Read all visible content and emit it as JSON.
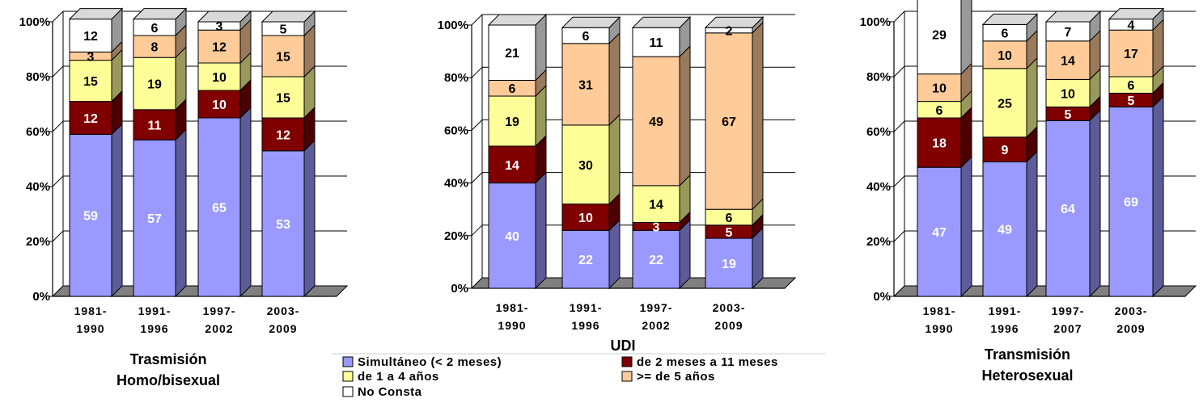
{
  "colors": {
    "simultaneo": "#9999ff",
    "dos_meses": "#800000",
    "uno_cuatro": "#ffff99",
    "cinco_mas": "#ffcc99",
    "no_consta": "#ffffff"
  },
  "legend": [
    {
      "key": "simultaneo",
      "label": "Simultáneo (< 2 meses)"
    },
    {
      "key": "dos_meses",
      "label": "de 2 meses a 11 meses"
    },
    {
      "key": "uno_cuatro",
      "label": "de 1 a 4 años"
    },
    {
      "key": "cinco_mas",
      "label": ">= de 5 años"
    },
    {
      "key": "no_consta",
      "label": "No Consta"
    }
  ],
  "chart_data": [
    {
      "type": "bar",
      "stacked": true,
      "percent": true,
      "title_lines": [
        "Trasmisión",
        "Homo/bisexual"
      ],
      "categories": [
        [
          "1981-",
          "1990"
        ],
        [
          "1991-",
          "1996"
        ],
        [
          "1997-",
          "2002"
        ],
        [
          "2003-",
          "2009"
        ]
      ],
      "y_ticks": [
        "0%",
        "20%",
        "40%",
        "60%",
        "80%",
        "100%"
      ],
      "series": [
        {
          "key": "simultaneo",
          "name": "Simultáneo (< 2 meses)",
          "values": [
            59,
            57,
            65,
            53
          ]
        },
        {
          "key": "dos_meses",
          "name": "de 2 meses a 11 meses",
          "values": [
            12,
            11,
            10,
            12
          ]
        },
        {
          "key": "uno_cuatro",
          "name": "de 1 a 4 años",
          "values": [
            15,
            19,
            10,
            15
          ]
        },
        {
          "key": "cinco_mas",
          "name": ">= de 5 años",
          "values": [
            3,
            8,
            12,
            15
          ]
        },
        {
          "key": "no_consta",
          "name": "No Consta",
          "values": [
            12,
            6,
            3,
            5
          ]
        }
      ]
    },
    {
      "type": "bar",
      "stacked": true,
      "percent": true,
      "title_lines": [
        "UDI"
      ],
      "categories": [
        [
          "1981-",
          "1990"
        ],
        [
          "1991-",
          "1996"
        ],
        [
          "1997-",
          "2002"
        ],
        [
          "2003-",
          "2009"
        ]
      ],
      "y_ticks": [
        "0%",
        "20%",
        "40%",
        "60%",
        "80%",
        "100%"
      ],
      "series": [
        {
          "key": "simultaneo",
          "name": "Simultáneo (< 2 meses)",
          "values": [
            40,
            22,
            22,
            19
          ]
        },
        {
          "key": "dos_meses",
          "name": "de 2 meses a 11 meses",
          "values": [
            14,
            10,
            3,
            5
          ]
        },
        {
          "key": "uno_cuatro",
          "name": "de 1 a 4 años",
          "values": [
            19,
            30,
            14,
            6
          ]
        },
        {
          "key": "cinco_mas",
          "name": ">= de 5 años",
          "values": [
            6,
            31,
            49,
            67
          ]
        },
        {
          "key": "no_consta",
          "name": "No Consta",
          "values": [
            21,
            6,
            11,
            2
          ]
        }
      ]
    },
    {
      "type": "bar",
      "stacked": true,
      "percent": true,
      "title_lines": [
        "Transmisión",
        "Heterosexual"
      ],
      "categories": [
        [
          "1981-",
          "1990"
        ],
        [
          "1991-",
          "1996"
        ],
        [
          "1997-",
          "2007"
        ],
        [
          "2003-",
          "2009"
        ]
      ],
      "y_ticks": [
        "0%",
        "20%",
        "40%",
        "60%",
        "80%",
        "100%"
      ],
      "series": [
        {
          "key": "simultaneo",
          "name": "Simultáneo (< 2 meses)",
          "values": [
            47,
            49,
            64,
            69
          ]
        },
        {
          "key": "dos_meses",
          "name": "de 2 meses a 11 meses",
          "values": [
            18,
            9,
            5,
            5
          ]
        },
        {
          "key": "uno_cuatro",
          "name": "de 1 a 4 años",
          "values": [
            6,
            25,
            10,
            6
          ]
        },
        {
          "key": "cinco_mas",
          "name": ">= de 5 años",
          "values": [
            10,
            10,
            14,
            17
          ]
        },
        {
          "key": "no_consta",
          "name": "No Consta",
          "values": [
            29,
            6,
            7,
            4
          ]
        }
      ]
    }
  ]
}
